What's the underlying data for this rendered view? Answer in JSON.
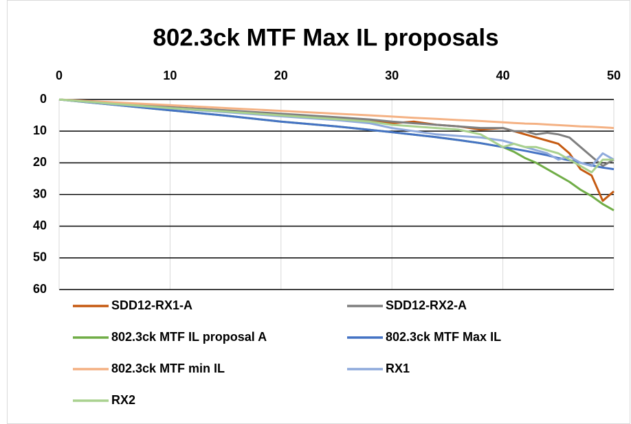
{
  "chart_data": {
    "type": "line",
    "title": "802.3ck MTF Max IL proposals",
    "x": [
      0,
      5,
      10,
      15,
      20,
      25,
      28,
      30,
      32,
      34,
      36,
      38,
      40,
      41,
      42,
      43,
      44,
      45,
      46,
      47,
      48,
      49,
      50
    ],
    "series": [
      {
        "name": "SDD12-RX1-A",
        "color": "#c55a11",
        "values": [
          0,
          1.3,
          2.5,
          3.5,
          4.6,
          6,
          6.5,
          7.5,
          7,
          8,
          8.5,
          9.5,
          9,
          10,
          11,
          12,
          13,
          14,
          17,
          22,
          24,
          32,
          29
        ]
      },
      {
        "name": "SDD12-RX2-A",
        "color": "#7f7f7f",
        "values": [
          0,
          1.2,
          2.4,
          3.4,
          4.5,
          5.6,
          6.3,
          7,
          7.5,
          8,
          8.5,
          9,
          9,
          10,
          10,
          11,
          10.5,
          11,
          12,
          15,
          18,
          21,
          19
        ]
      },
      {
        "name": "802.3ck MTF IL proposal A",
        "color": "#70ad47",
        "values": [
          0,
          1.7,
          3.4,
          5.1,
          7,
          8.5,
          9.6,
          10.3,
          11.1,
          11.9,
          12.8,
          13.8,
          15,
          16.5,
          18.5,
          20,
          22,
          24,
          26,
          28.5,
          30.5,
          33,
          35
        ]
      },
      {
        "name": "802.3ck MTF Max IL",
        "color": "#4472c4",
        "values": [
          0,
          1.7,
          3.4,
          5.1,
          7,
          8.5,
          9.6,
          10.3,
          11.1,
          11.9,
          12.8,
          13.8,
          15,
          15.6,
          16.2,
          16.9,
          17.6,
          18.5,
          19.2,
          20,
          20.8,
          21.5,
          22
        ]
      },
      {
        "name": "802.3ck MTF min IL",
        "color": "#f4b183",
        "values": [
          0,
          0.9,
          1.8,
          2.7,
          3.6,
          4.5,
          5,
          5.4,
          5.8,
          6.1,
          6.5,
          6.8,
          7.2,
          7.4,
          7.6,
          7.7,
          7.9,
          8.1,
          8.3,
          8.5,
          8.6,
          8.8,
          9
        ]
      },
      {
        "name": "RX1",
        "color": "#8faadc",
        "values": [
          0,
          1.5,
          2.8,
          4,
          5.3,
          6.5,
          7.5,
          9,
          10,
          11,
          11.5,
          12,
          13,
          14,
          15,
          16,
          17,
          19,
          18,
          20,
          21,
          17,
          19
        ]
      },
      {
        "name": "RX2",
        "color": "#a9d18e",
        "values": [
          0,
          1.4,
          2.7,
          3.8,
          5,
          6.2,
          7,
          8,
          8.5,
          9,
          9.5,
          11,
          15,
          14,
          15,
          15,
          16,
          17,
          19,
          21,
          23,
          19,
          19
        ]
      }
    ],
    "xlim": [
      0,
      50
    ],
    "xticks": [
      0,
      10,
      20,
      30,
      40,
      50
    ],
    "ylim": [
      0,
      60
    ],
    "yticks": [
      0,
      10,
      20,
      30,
      40,
      50,
      60
    ],
    "y_inverted": true,
    "x_axis_position": "top",
    "grid": true,
    "legend_position": "bottom"
  }
}
